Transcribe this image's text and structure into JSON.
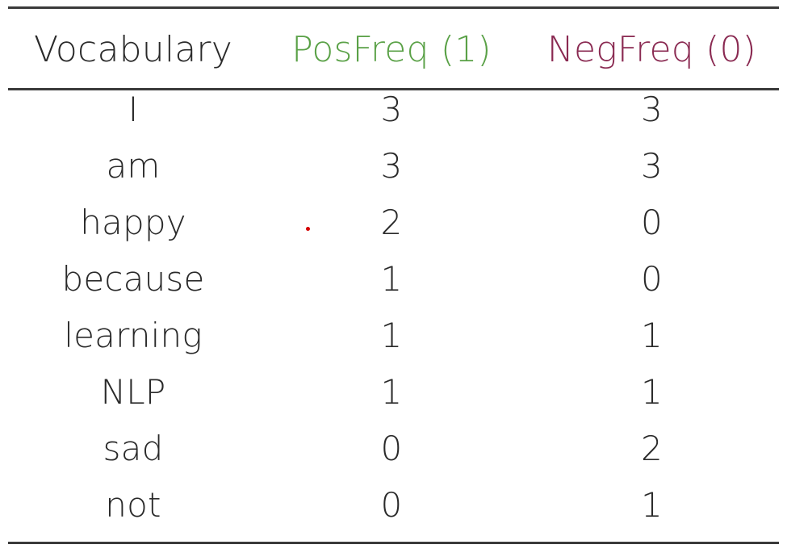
{
  "colors": {
    "pos": "#5aa147",
    "neg": "#8a2a52",
    "text": "#2a2a2a",
    "rule": "#3a3a3a"
  },
  "chart_data": {
    "type": "table",
    "columns": [
      "Vocabulary",
      "PosFreq (1)",
      "NegFreq (0)"
    ],
    "rows": [
      [
        "I",
        "3",
        "3"
      ],
      [
        "am",
        "3",
        "3"
      ],
      [
        "happy",
        "2",
        "0"
      ],
      [
        "because",
        "1",
        "0"
      ],
      [
        "learning",
        "1",
        "1"
      ],
      [
        "NLP",
        "1",
        "1"
      ],
      [
        "sad",
        "0",
        "2"
      ],
      [
        "not",
        "0",
        "1"
      ]
    ]
  }
}
